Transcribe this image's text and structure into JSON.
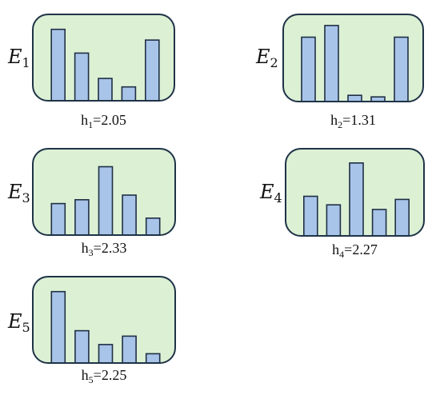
{
  "style": {
    "box_fill": "#dcf0d4",
    "box_border": "#1f3347",
    "bar_fill": "#a8c4e8",
    "bar_stroke": "#1f2f45"
  },
  "chart_data": [
    {
      "type": "bar",
      "label_base": "E",
      "label_sub": "1",
      "annotation_base": "h",
      "annotation_sub": "1",
      "annotation_value": "=2.05",
      "values": [
        0.92,
        0.61,
        0.28,
        0.17,
        0.78
      ],
      "ylim": [
        0,
        1
      ]
    },
    {
      "type": "bar",
      "label_base": "E",
      "label_sub": "2",
      "annotation_base": "h",
      "annotation_sub": "2",
      "annotation_value": "=1.31",
      "values": [
        0.82,
        0.97,
        0.07,
        0.05,
        0.82
      ],
      "ylim": [
        0,
        1
      ]
    },
    {
      "type": "bar",
      "label_base": "E",
      "label_sub": "3",
      "annotation_base": "h",
      "annotation_sub": "3",
      "annotation_value": "=2.33",
      "values": [
        0.4,
        0.45,
        0.88,
        0.51,
        0.21
      ],
      "ylim": [
        0,
        1
      ]
    },
    {
      "type": "bar",
      "label_base": "E",
      "label_sub": "4",
      "annotation_base": "h",
      "annotation_sub": "4",
      "annotation_value": "=2.27",
      "values": [
        0.5,
        0.39,
        0.93,
        0.33,
        0.46
      ],
      "ylim": [
        0,
        1
      ]
    },
    {
      "type": "bar",
      "label_base": "E",
      "label_sub": "5",
      "annotation_base": "h",
      "annotation_sub": "5",
      "annotation_value": "=2.25",
      "values": [
        0.92,
        0.41,
        0.23,
        0.34,
        0.11
      ],
      "ylim": [
        0,
        1
      ]
    }
  ]
}
